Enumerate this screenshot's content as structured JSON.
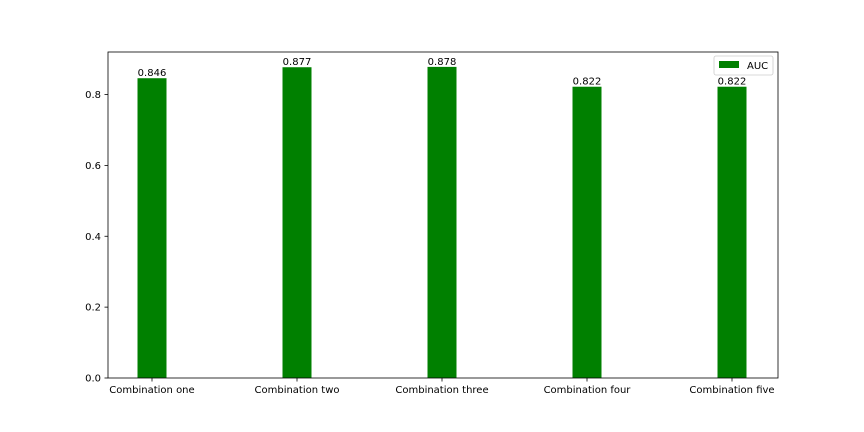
{
  "chart_data": {
    "type": "bar",
    "categories": [
      "Combination one",
      "Combination two",
      "Combination three",
      "Combination four",
      "Combination five"
    ],
    "series": [
      {
        "name": "AUC",
        "values": [
          0.846,
          0.877,
          0.878,
          0.822,
          0.822
        ],
        "color": "#008000"
      }
    ],
    "data_labels": [
      "0.846",
      "0.877",
      "0.878",
      "0.822",
      "0.822"
    ],
    "yticks": [
      "0.0",
      "0.2",
      "0.4",
      "0.6",
      "0.8"
    ],
    "ylim": [
      0,
      0.92
    ],
    "legend": {
      "placement": "top-right"
    },
    "grid": false
  }
}
